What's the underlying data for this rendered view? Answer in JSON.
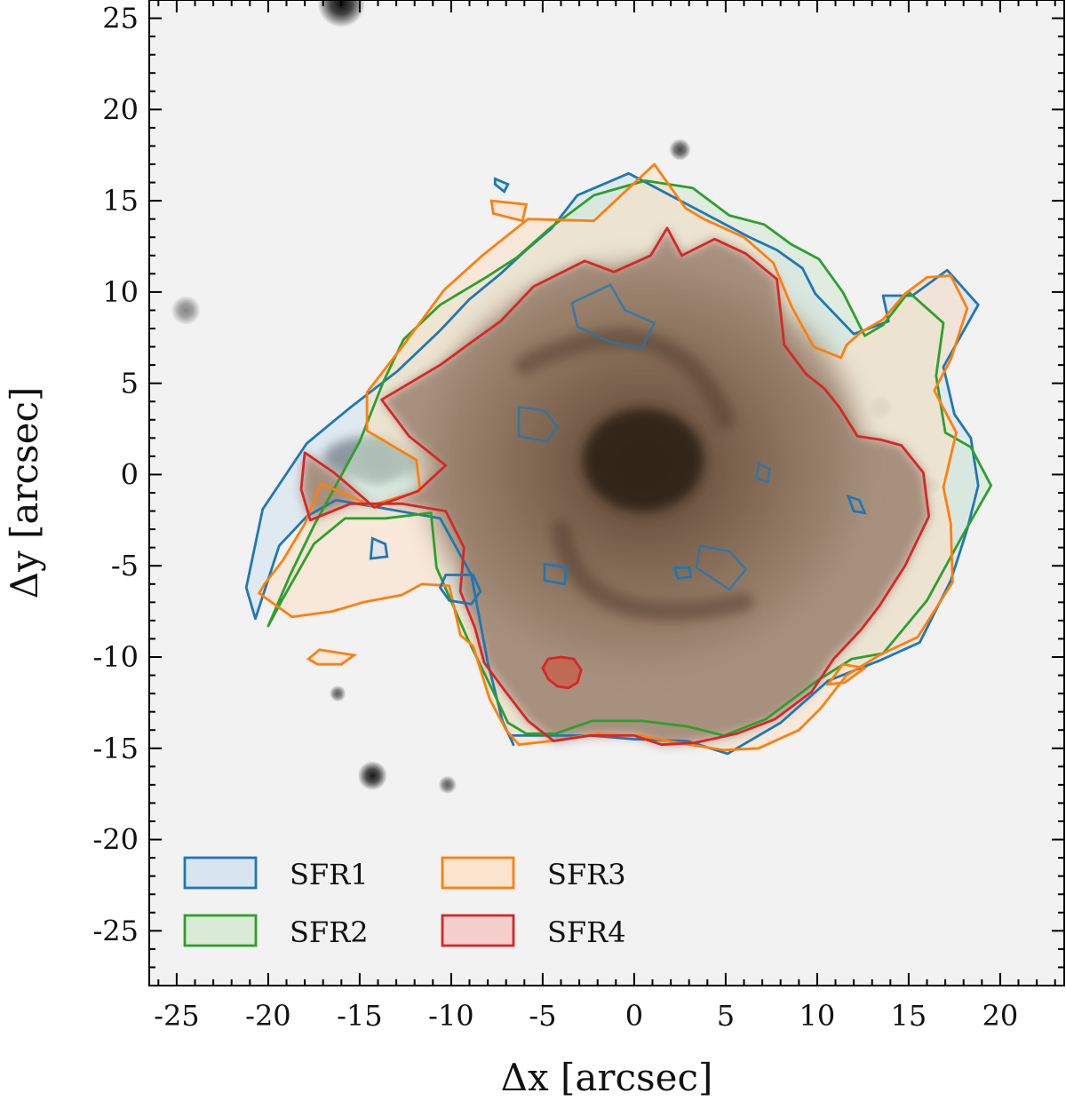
{
  "chart_data": {
    "type": "image-contour",
    "title": "",
    "xlabel": "Δx [arcsec]",
    "ylabel": "Δy [arcsec]",
    "xlim": [
      -26.5,
      23.5
    ],
    "ylim": [
      -28,
      26
    ],
    "xticks": [
      -25,
      -20,
      -15,
      -10,
      -5,
      0,
      5,
      10,
      15,
      20
    ],
    "xtick_labels": [
      "-25",
      "-20",
      "-15",
      "-10",
      "-5",
      "0",
      "5",
      "10",
      "15",
      "20"
    ],
    "yticks": [
      25,
      20,
      15,
      10,
      5,
      0,
      -5,
      -10,
      -15,
      -20,
      -25
    ],
    "ytick_labels": [
      "25",
      "20",
      "15",
      "10",
      "5",
      "0",
      "-5",
      "-10",
      "-15",
      "-20",
      "-25"
    ],
    "background": "grayscale galaxy image with brown-shaded interior",
    "stars": [
      {
        "x": -16,
        "y": 25.8,
        "r": 1.3,
        "opacity": 0.95
      },
      {
        "x": 2.5,
        "y": 17.8,
        "r": 0.6,
        "opacity": 0.7
      },
      {
        "x": -24.5,
        "y": 9.0,
        "r": 0.8,
        "opacity": 0.45
      },
      {
        "x": -14,
        "y": 0.8,
        "r": 1.6,
        "opacity": 0.95
      },
      {
        "x": -16.2,
        "y": -12.0,
        "r": 0.45,
        "opacity": 0.6
      },
      {
        "x": -14.3,
        "y": -16.5,
        "r": 0.8,
        "opacity": 0.9
      },
      {
        "x": -10.2,
        "y": -17.0,
        "r": 0.5,
        "opacity": 0.6
      },
      {
        "x": 13.5,
        "y": 3.7,
        "r": 0.7,
        "opacity": 0.6
      },
      {
        "x": 16.3,
        "y": -0.6,
        "r": 0.5,
        "opacity": 0.5
      },
      {
        "x": 8.8,
        "y": 6.5,
        "r": 0.5,
        "opacity": 0.6
      }
    ],
    "series": [
      {
        "name": "SFR1",
        "color": "#1f77b4",
        "fill": "#cfe1f0",
        "x": [
          -19.4,
          -17.9,
          -16.3,
          -14.0,
          -10.6,
          -8.9,
          -8.0,
          -7.2,
          -6.6,
          -6.8,
          -6.0,
          -4.7,
          -2.4,
          0.0,
          2.9,
          5.1,
          8.0,
          10.6,
          13.4,
          15.6,
          17.3,
          18.2,
          18.8,
          18.4,
          17.5,
          16.9,
          18.8,
          17.1,
          15.2,
          13.6,
          13.9,
          12.0,
          9.9,
          9.2,
          7.8,
          6.3,
          3.1,
          -0.3,
          -3.1,
          -4.5,
          -5.9,
          -7.3,
          -9.0,
          -10.6,
          -12.9,
          -15.6,
          -17.9,
          -20.3,
          -21.2,
          -20.7
        ],
        "y": [
          -3.9,
          -2.3,
          -1.4,
          -1.8,
          -2.4,
          -5.5,
          -10.3,
          -13.5,
          -14.8,
          -14.3,
          -14.3,
          -14.3,
          -14.3,
          -14.5,
          -14.6,
          -15.3,
          -13.6,
          -11.3,
          -10.2,
          -9.2,
          -5.8,
          -3.0,
          -0.6,
          2.0,
          3.3,
          5.9,
          9.3,
          11.2,
          9.8,
          9.8,
          8.4,
          7.7,
          9.9,
          11.3,
          12.3,
          13.0,
          14.7,
          16.5,
          15.3,
          13.5,
          12.3,
          11.0,
          9.6,
          7.9,
          5.7,
          3.6,
          1.7,
          -1.9,
          -6.2,
          -7.9
        ]
      },
      {
        "name": "SFR2",
        "color": "#2ca02c",
        "fill": "#d2e8d0",
        "x": [
          -20.0,
          -19.2,
          -17.5,
          -15.8,
          -13.6,
          -11.1,
          -10.8,
          -9.1,
          -7.7,
          -6.9,
          -5.9,
          -4.3,
          -2.3,
          0.4,
          2.9,
          4.9,
          7.2,
          10.0,
          11.9,
          13.6,
          16.0,
          17.8,
          19.5,
          18.4,
          17.0,
          16.5,
          16.9,
          15.0,
          13.6,
          12.6,
          11.4,
          10.1,
          8.6,
          7.1,
          5.2,
          3.2,
          0.6,
          -2.2,
          -4.6,
          -6.4,
          -8.1,
          -10.6,
          -12.6,
          -13.7,
          -15.0,
          -17.5,
          -18.8
        ],
        "y": [
          -8.3,
          -6.8,
          -3.8,
          -2.4,
          -2.4,
          -2.1,
          -5.1,
          -9.0,
          -11.9,
          -13.6,
          -14.2,
          -14.2,
          -13.5,
          -13.5,
          -13.8,
          -14.3,
          -13.4,
          -11.3,
          -10.1,
          -9.8,
          -6.9,
          -3.6,
          -0.6,
          1.5,
          2.3,
          5.4,
          8.3,
          10.0,
          8.2,
          7.6,
          10.0,
          11.8,
          12.6,
          13.7,
          14.2,
          15.7,
          16.1,
          15.3,
          13.5,
          11.9,
          10.8,
          9.3,
          7.4,
          5.1,
          1.8,
          -2.8,
          -5.5
        ]
      },
      {
        "name": "SFR3",
        "color": "#ff7f0e",
        "fill": "#fde0c4",
        "x": [
          -20.5,
          -18.7,
          -16.5,
          -14.8,
          -12.7,
          -11.6,
          -10.1,
          -9.5,
          -8.8,
          -7.9,
          -7.0,
          -6.3,
          -4.6,
          -2.0,
          0.3,
          2.4,
          4.9,
          6.8,
          9.0,
          10.2,
          11.6,
          13.4,
          15.5,
          17.4,
          17.3,
          16.9,
          17.6,
          16.4,
          17.3,
          18.2,
          17.3,
          16.0,
          14.8,
          13.6,
          12.4,
          11.6,
          11.3,
          9.8,
          8.6,
          7.6,
          6.0,
          3.8,
          2.8,
          1.1,
          -2.2,
          -5.8,
          -8.3,
          -10.4,
          -12.6,
          -14.6,
          -14.6,
          -11.9,
          -11.7,
          -14.4,
          -17.1,
          -18.0,
          -19.2,
          -20.2
        ],
        "y": [
          -6.5,
          -7.8,
          -7.5,
          -7.0,
          -6.6,
          -6.0,
          -6.1,
          -8.8,
          -9.4,
          -12.3,
          -14.0,
          -14.8,
          -14.6,
          -14.2,
          -14.3,
          -14.7,
          -15.1,
          -15.0,
          -14.0,
          -12.8,
          -11.0,
          -9.9,
          -8.9,
          -5.9,
          -2.7,
          -0.7,
          2.3,
          4.6,
          6.3,
          9.1,
          10.9,
          10.8,
          9.9,
          8.5,
          7.8,
          7.1,
          6.4,
          7.0,
          9.2,
          11.6,
          13.0,
          14.0,
          14.6,
          17.0,
          13.9,
          14.0,
          12.0,
          10.1,
          7.1,
          4.5,
          2.4,
          0.8,
          -0.9,
          -1.7,
          -0.5,
          -2.7,
          -4.7,
          -6.0
        ]
      },
      {
        "name": "SFR4",
        "color": "#d62728",
        "fill": "#f4c6c2",
        "x": [
          -17.7,
          -15.5,
          -12.7,
          -10.3,
          -9.3,
          -9.5,
          -8.7,
          -8.2,
          -7.1,
          -5.8,
          -4.4,
          -2.4,
          0.0,
          1.5,
          3.3,
          5.6,
          7.7,
          9.7,
          10.9,
          12.4,
          13.4,
          14.8,
          16.1,
          15.8,
          14.6,
          13.5,
          12.2,
          11.2,
          10.4,
          9.4,
          8.2,
          8.0,
          7.8,
          6.1,
          4.4,
          2.6,
          1.8,
          0.9,
          -1.1,
          -2.7,
          -5.5,
          -7.3,
          -9.1,
          -10.6,
          -13.8,
          -12.3,
          -10.3,
          -11.8,
          -14.2,
          -16.4,
          -18.0,
          -18.2
        ],
        "y": [
          -2.5,
          -1.6,
          -1.6,
          -2.0,
          -4.0,
          -6.4,
          -8.4,
          -10.3,
          -11.8,
          -13.5,
          -14.6,
          -14.3,
          -14.3,
          -14.8,
          -14.7,
          -14.2,
          -13.4,
          -11.9,
          -10.1,
          -8.5,
          -7.2,
          -5.0,
          -2.3,
          0.1,
          1.6,
          1.9,
          2.1,
          3.7,
          4.7,
          5.5,
          7.1,
          8.9,
          10.7,
          12.1,
          12.9,
          12.0,
          13.5,
          12.0,
          11.1,
          11.7,
          10.3,
          8.4,
          7.1,
          6.0,
          4.1,
          2.1,
          0.5,
          -0.9,
          -1.8,
          0.1,
          1.2,
          -0.8
        ]
      }
    ],
    "extra_contours": [
      {
        "series": "SFR4",
        "x": [
          -4.0,
          -3.3,
          -2.9,
          -3.1,
          -3.6,
          -4.2,
          -4.7,
          -5.0,
          -4.7
        ],
        "y": [
          -10.0,
          -10.1,
          -10.7,
          -11.4,
          -11.7,
          -11.6,
          -11.2,
          -10.6,
          -10.1
        ]
      },
      {
        "series": "SFR3",
        "x": [
          -17.2,
          -15.3,
          -16.0,
          -17.3,
          -17.8
        ],
        "y": [
          -9.6,
          -9.9,
          -10.4,
          -10.4,
          -10.1
        ]
      },
      {
        "series": "SFR3",
        "x": [
          11.4,
          12.6,
          11.5,
          10.6
        ],
        "y": [
          -10.4,
          -10.6,
          -11.4,
          -11.5
        ]
      },
      {
        "series": "SFR3",
        "x": [
          -7.8,
          -5.9,
          -6.1,
          -7.7
        ],
        "y": [
          15.0,
          14.8,
          13.9,
          14.3
        ]
      },
      {
        "series": "SFR1",
        "x": [
          -10.3,
          -8.8,
          -8.4,
          -8.9,
          -10.1,
          -10.6
        ],
        "y": [
          -5.5,
          -5.5,
          -6.4,
          -7.1,
          -6.9,
          -6.2
        ]
      },
      {
        "series": "SFR1",
        "x": [
          -14.3,
          -13.6,
          -13.5,
          -14.4
        ],
        "y": [
          -3.5,
          -3.8,
          -4.5,
          -4.6
        ]
      },
      {
        "series": "SFR1",
        "x": [
          -7.6,
          -6.9,
          -7.1,
          -7.6
        ],
        "y": [
          16.2,
          15.9,
          15.5,
          15.9
        ]
      },
      {
        "series": "SFR1",
        "x": [
          11.7,
          12.3,
          12.6,
          12.0
        ],
        "y": [
          -1.2,
          -1.4,
          -2.1,
          -2.0
        ]
      },
      {
        "series": "SFR1",
        "x": [
          -4.9,
          -3.7,
          -3.8,
          -4.9
        ],
        "y": [
          -4.9,
          -5.1,
          -6.0,
          -5.8
        ]
      },
      {
        "series": "SFR1",
        "x": [
          2.2,
          3.0,
          3.1,
          2.4
        ],
        "y": [
          -5.1,
          -5.1,
          -5.6,
          -5.7
        ]
      }
    ],
    "interior_contours": [
      {
        "series": "SFR1",
        "x": [
          -3.1,
          -1.4,
          0.4,
          1.1,
          -0.5,
          -1.3,
          -3.4
        ],
        "y": [
          8.1,
          7.3,
          6.9,
          8.3,
          9.0,
          10.4,
          9.4
        ]
      },
      {
        "series": "SFR1",
        "x": [
          -6.3,
          -4.9,
          -4.2,
          -4.8,
          -6.3
        ],
        "y": [
          3.7,
          3.5,
          2.6,
          1.8,
          2.1
        ]
      },
      {
        "series": "SFR1",
        "x": [
          3.6,
          5.2,
          6.1,
          5.2,
          3.4
        ],
        "y": [
          -3.9,
          -4.2,
          -5.2,
          -6.3,
          -5.1
        ]
      },
      {
        "series": "SFR1",
        "x": [
          6.8,
          7.4,
          7.3,
          6.7
        ],
        "y": [
          0.6,
          0.3,
          -0.4,
          -0.2
        ]
      }
    ],
    "legend": {
      "location": "lower-left",
      "columns": 2,
      "entries": [
        "SFR1",
        "SFR2",
        "SFR3",
        "SFR4"
      ]
    }
  }
}
